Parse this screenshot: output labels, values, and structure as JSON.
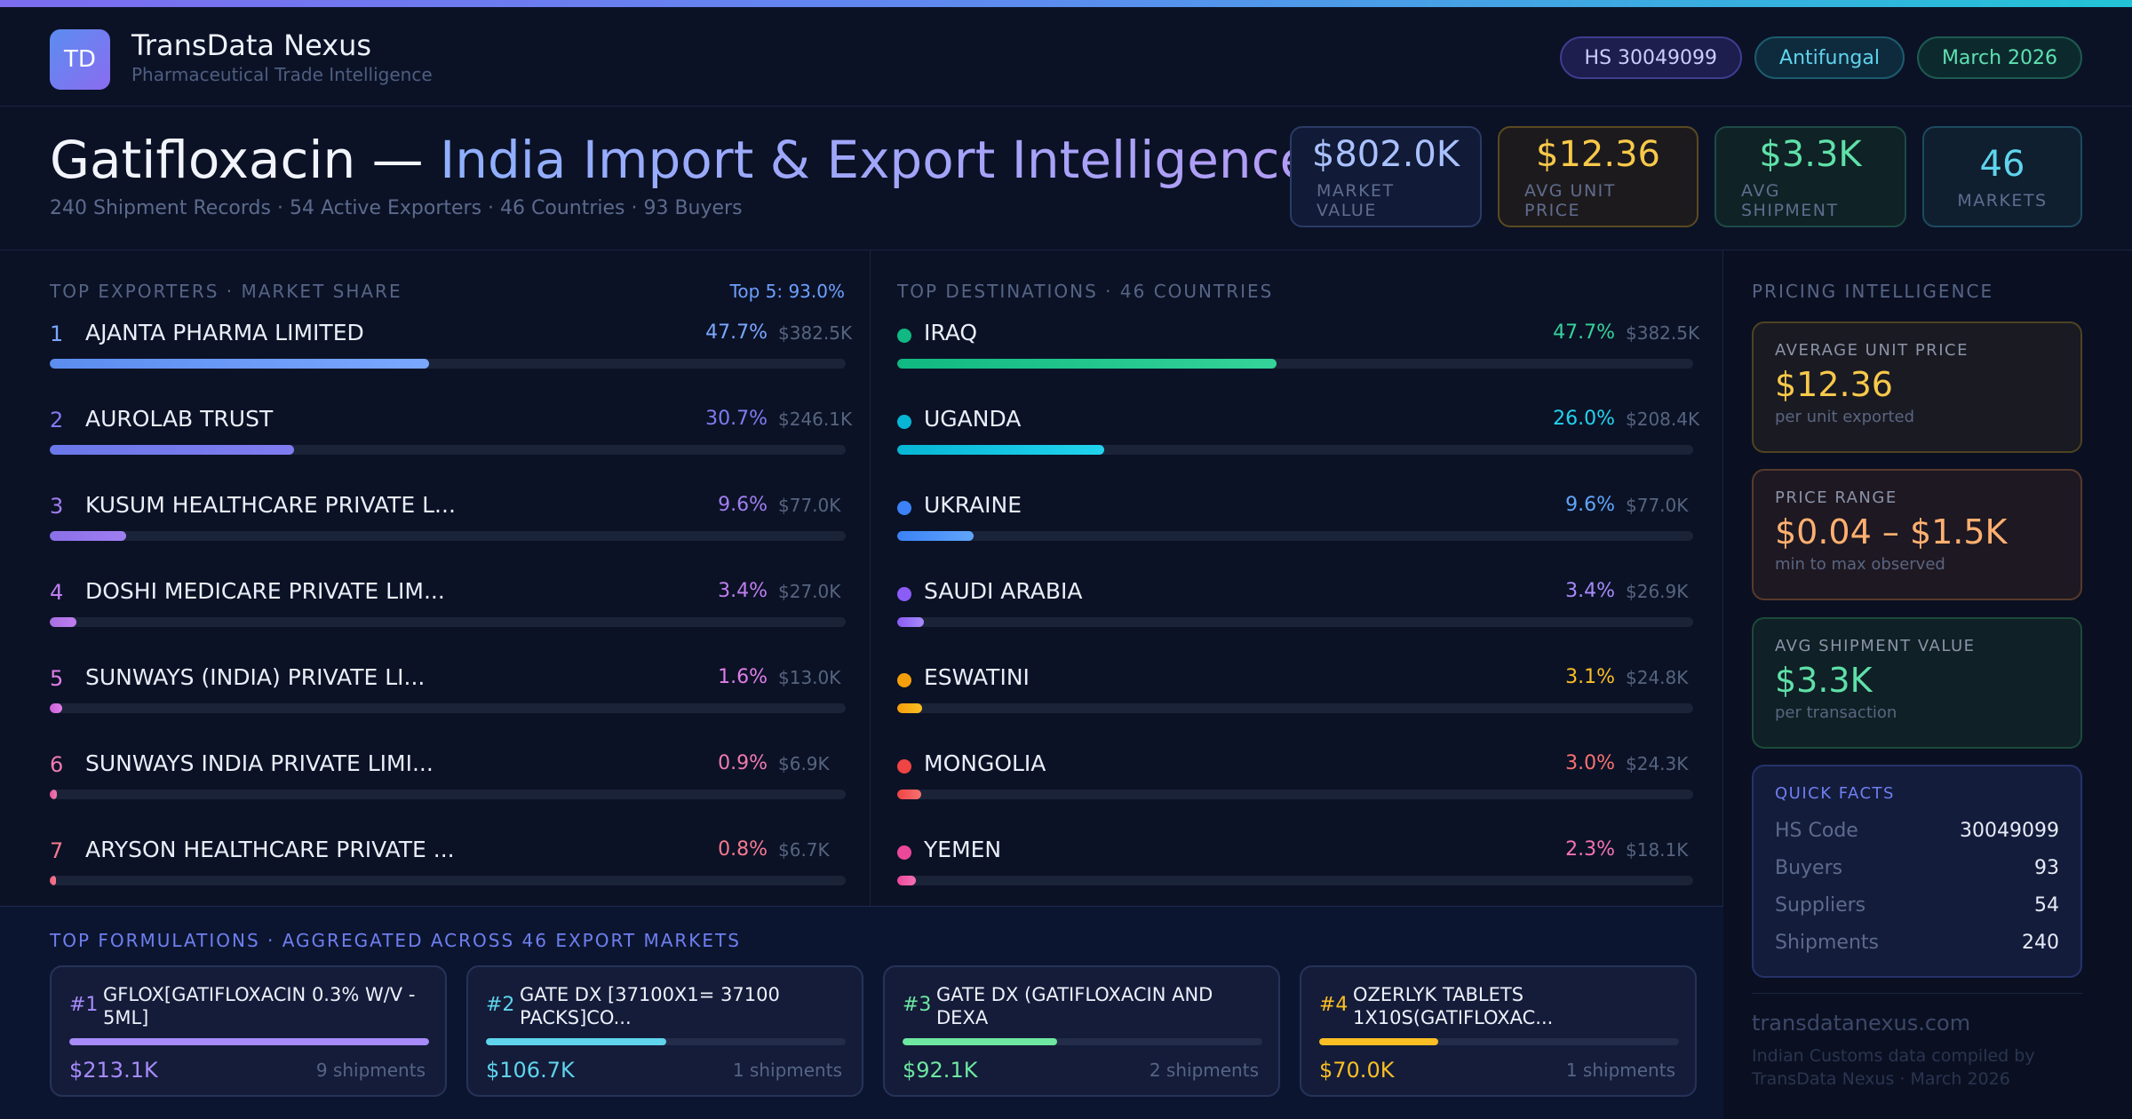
{
  "brand": {
    "initials": "TD",
    "name": "TransData Nexus",
    "tagline": "Pharmaceutical Trade Intelligence"
  },
  "pills": {
    "hs": "HS 30049099",
    "category": "Antifungal",
    "date": "March 2026"
  },
  "title": {
    "product": "Gatifloxacin —",
    "rest": "India Import & Export Intelligence",
    "subtitle": "240 Shipment Records · 54 Active Exporters · 46 Countries · 93 Buyers"
  },
  "kpis": [
    {
      "value": "$802.0K",
      "label": "MARKET VALUE"
    },
    {
      "value": "$12.36",
      "label": "AVG UNIT PRICE"
    },
    {
      "value": "$3.3K",
      "label": "AVG SHIPMENT"
    },
    {
      "value": "46",
      "label": "MARKETS"
    }
  ],
  "exporters": {
    "heading": "TOP EXPORTERS · MARKET SHARE",
    "note": "Top 5: 93.0%",
    "items": [
      {
        "rank": "1",
        "name": "AJANTA PHARMA LIMITED",
        "pct": "47.7%",
        "value": "$382.5K",
        "share": 47.7,
        "color": "#5b8def",
        "color2": "#7aa7ff"
      },
      {
        "rank": "2",
        "name": "AUROLAB TRUST",
        "pct": "30.7%",
        "value": "$246.1K",
        "share": 30.7,
        "color": "#6a78ea",
        "color2": "#7f7cf0"
      },
      {
        "rank": "3",
        "name": "KUSUM HEALTHCARE PRIVATE L...",
        "pct": "9.6%",
        "value": "$77.0K",
        "share": 9.6,
        "color": "#8a6fe8",
        "color2": "#a07ef0"
      },
      {
        "rank": "4",
        "name": "DOSHI MEDICARE PRIVATE LIM...",
        "pct": "3.4%",
        "value": "$27.0K",
        "share": 3.4,
        "color": "#a66fe0",
        "color2": "#c07ef0"
      },
      {
        "rank": "5",
        "name": "SUNWAYS (INDIA) PRIVATE LI...",
        "pct": "1.6%",
        "value": "$13.0K",
        "share": 1.6,
        "color": "#c95fd8",
        "color2": "#e07ee8"
      },
      {
        "rank": "6",
        "name": "SUNWAYS INDIA PRIVATE LIMI...",
        "pct": "0.9%",
        "value": "$6.9K",
        "share": 0.9,
        "color": "#e05a9a",
        "color2": "#f07ab0"
      },
      {
        "rank": "7",
        "name": "ARYSON HEALTHCARE PRIVATE ...",
        "pct": "0.8%",
        "value": "$6.7K",
        "share": 0.8,
        "color": "#e8607a",
        "color2": "#f57a90"
      }
    ]
  },
  "destinations": {
    "heading": "TOP DESTINATIONS · 46 COUNTRIES",
    "items": [
      {
        "name": "IRAQ",
        "pct": "47.7%",
        "value": "$382.5K",
        "share": 47.7,
        "color": "#10b981",
        "color2": "#34d399"
      },
      {
        "name": "UGANDA",
        "pct": "26.0%",
        "value": "$208.4K",
        "share": 26.0,
        "color": "#06b6d4",
        "color2": "#22d3ee"
      },
      {
        "name": "UKRAINE",
        "pct": "9.6%",
        "value": "$77.0K",
        "share": 9.6,
        "color": "#3b82f6",
        "color2": "#60a5fa"
      },
      {
        "name": "SAUDI ARABIA",
        "pct": "3.4%",
        "value": "$26.9K",
        "share": 3.4,
        "color": "#8b5cf6",
        "color2": "#a78bfa"
      },
      {
        "name": "ESWATINI",
        "pct": "3.1%",
        "value": "$24.8K",
        "share": 3.1,
        "color": "#f59e0b",
        "color2": "#fbbf24"
      },
      {
        "name": "MONGOLIA",
        "pct": "3.0%",
        "value": "$24.3K",
        "share": 3.0,
        "color": "#ef4444",
        "color2": "#f87171"
      },
      {
        "name": "YEMEN",
        "pct": "2.3%",
        "value": "$18.1K",
        "share": 2.3,
        "color": "#ec4899",
        "color2": "#f472b6"
      }
    ]
  },
  "formulations": {
    "heading": "TOP FORMULATIONS · AGGREGATED ACROSS 46 EXPORT MARKETS",
    "items": [
      {
        "rank": "#1",
        "name": "GFLOX[GATIFLOXACIN 0.3% W/V - 5ML]",
        "value": "$213.1K",
        "shipments": "9 shipments",
        "share": 100,
        "color": "#a78bfa"
      },
      {
        "rank": "#2",
        "name": "GATE DX [37100X1= 37100 PACKS]CO...",
        "value": "$106.7K",
        "shipments": "1 shipments",
        "share": 50,
        "color": "#5fd4ec"
      },
      {
        "rank": "#3",
        "name": "GATE DX (GATIFLOXACIN AND DEXA",
        "value": "$92.1K",
        "shipments": "2 shipments",
        "share": 43,
        "color": "#6ee7a0"
      },
      {
        "rank": "#4",
        "name": "OZERLYK TABLETS 1X10S(GATIFLOXAC...",
        "value": "$70.0K",
        "shipments": "1 shipments",
        "share": 33,
        "color": "#fbbf24"
      }
    ]
  },
  "pricing": {
    "heading": "PRICING INTELLIGENCE",
    "cards": [
      {
        "label": "AVERAGE UNIT PRICE",
        "value": "$12.36",
        "note": "per unit exported"
      },
      {
        "label": "PRICE RANGE",
        "value": "$0.04 – $1.5K",
        "note": "min to max observed"
      },
      {
        "label": "AVG SHIPMENT VALUE",
        "value": "$3.3K",
        "note": "per transaction"
      }
    ]
  },
  "quick_facts": {
    "heading": "QUICK FACTS",
    "rows": [
      {
        "key": "HS Code",
        "value": "30049099"
      },
      {
        "key": "Buyers",
        "value": "93"
      },
      {
        "key": "Suppliers",
        "value": "54"
      },
      {
        "key": "Shipments",
        "value": "240"
      }
    ]
  },
  "footer": {
    "site": "transdatanexus.com",
    "note": "Indian Customs data compiled by TransData Nexus · March 2026"
  }
}
